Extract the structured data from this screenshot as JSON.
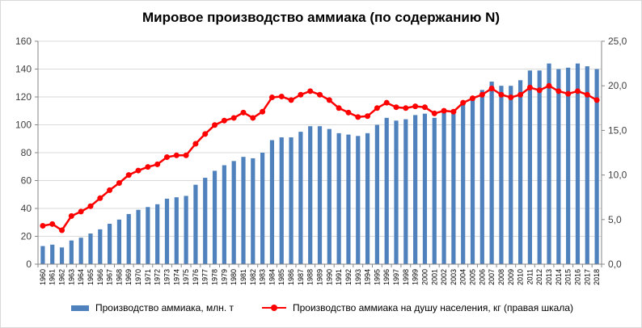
{
  "chart_data": {
    "type": "bar+line",
    "title": "Мировое производство аммиака (по содержанию N)",
    "x": [
      "1960",
      "1961",
      "1962",
      "1963",
      "1964",
      "1965",
      "1966",
      "1967",
      "1968",
      "1969",
      "1970",
      "1971",
      "1972",
      "1973",
      "1974",
      "1975",
      "1976",
      "1977",
      "1978",
      "1979",
      "1980",
      "1981",
      "1982",
      "1983",
      "1984",
      "1985",
      "1986",
      "1987",
      "1988",
      "1989",
      "1990",
      "1991",
      "1992",
      "1993",
      "1994",
      "1995",
      "1996",
      "1997",
      "1998",
      "1999",
      "2000",
      "2001",
      "2002",
      "2003",
      "2004",
      "2005",
      "2006",
      "2007",
      "2008",
      "2009",
      "2010",
      "2011",
      "2012",
      "2013",
      "2014",
      "2015",
      "2016",
      "2017",
      "2018"
    ],
    "series": [
      {
        "name": "Производство аммиака, млн. т",
        "type": "bar",
        "axis": "left",
        "color": "#4f81bd",
        "values": [
          13,
          14,
          12,
          17,
          19,
          22,
          25,
          29,
          32,
          36,
          39,
          41,
          43,
          47,
          48,
          49,
          57,
          62,
          67,
          71,
          74,
          77,
          76,
          80,
          89,
          91,
          91,
          95,
          99,
          99,
          97,
          94,
          93,
          92,
          94,
          100,
          105,
          103,
          104,
          107,
          108,
          105,
          109,
          110,
          116,
          120,
          125,
          131,
          128,
          128,
          132,
          139,
          139,
          144,
          140,
          141,
          144,
          142,
          140
        ]
      },
      {
        "name": "Производство аммиака  на душу населения, кг (правая шкала)",
        "type": "line",
        "axis": "right",
        "color": "#ff0000",
        "values": [
          4.3,
          4.5,
          3.8,
          5.4,
          5.9,
          6.5,
          7.4,
          8.3,
          9.1,
          10.0,
          10.5,
          10.9,
          11.2,
          12.0,
          12.2,
          12.2,
          13.5,
          14.6,
          15.6,
          16.1,
          16.4,
          17.0,
          16.4,
          17.1,
          18.7,
          18.8,
          18.4,
          19.0,
          19.4,
          19.0,
          18.4,
          17.5,
          17.0,
          16.5,
          16.6,
          17.5,
          18.1,
          17.6,
          17.5,
          17.7,
          17.6,
          16.9,
          17.2,
          17.1,
          18.1,
          18.6,
          19.0,
          19.7,
          19.0,
          18.7,
          19.0,
          19.8,
          19.5,
          20.0,
          19.4,
          19.1,
          19.4,
          19.0,
          18.4
        ]
      }
    ],
    "y_left": {
      "ylim": [
        0,
        160
      ],
      "ticks": [
        "0",
        "20",
        "40",
        "60",
        "80",
        "100",
        "120",
        "140",
        "160"
      ]
    },
    "y_right": {
      "ylim": [
        0,
        25
      ],
      "ticks": [
        "0,0",
        "5,0",
        "10,0",
        "15,0",
        "20,0",
        "25,0"
      ]
    },
    "grid": "horizontal",
    "legend_position": "bottom"
  }
}
